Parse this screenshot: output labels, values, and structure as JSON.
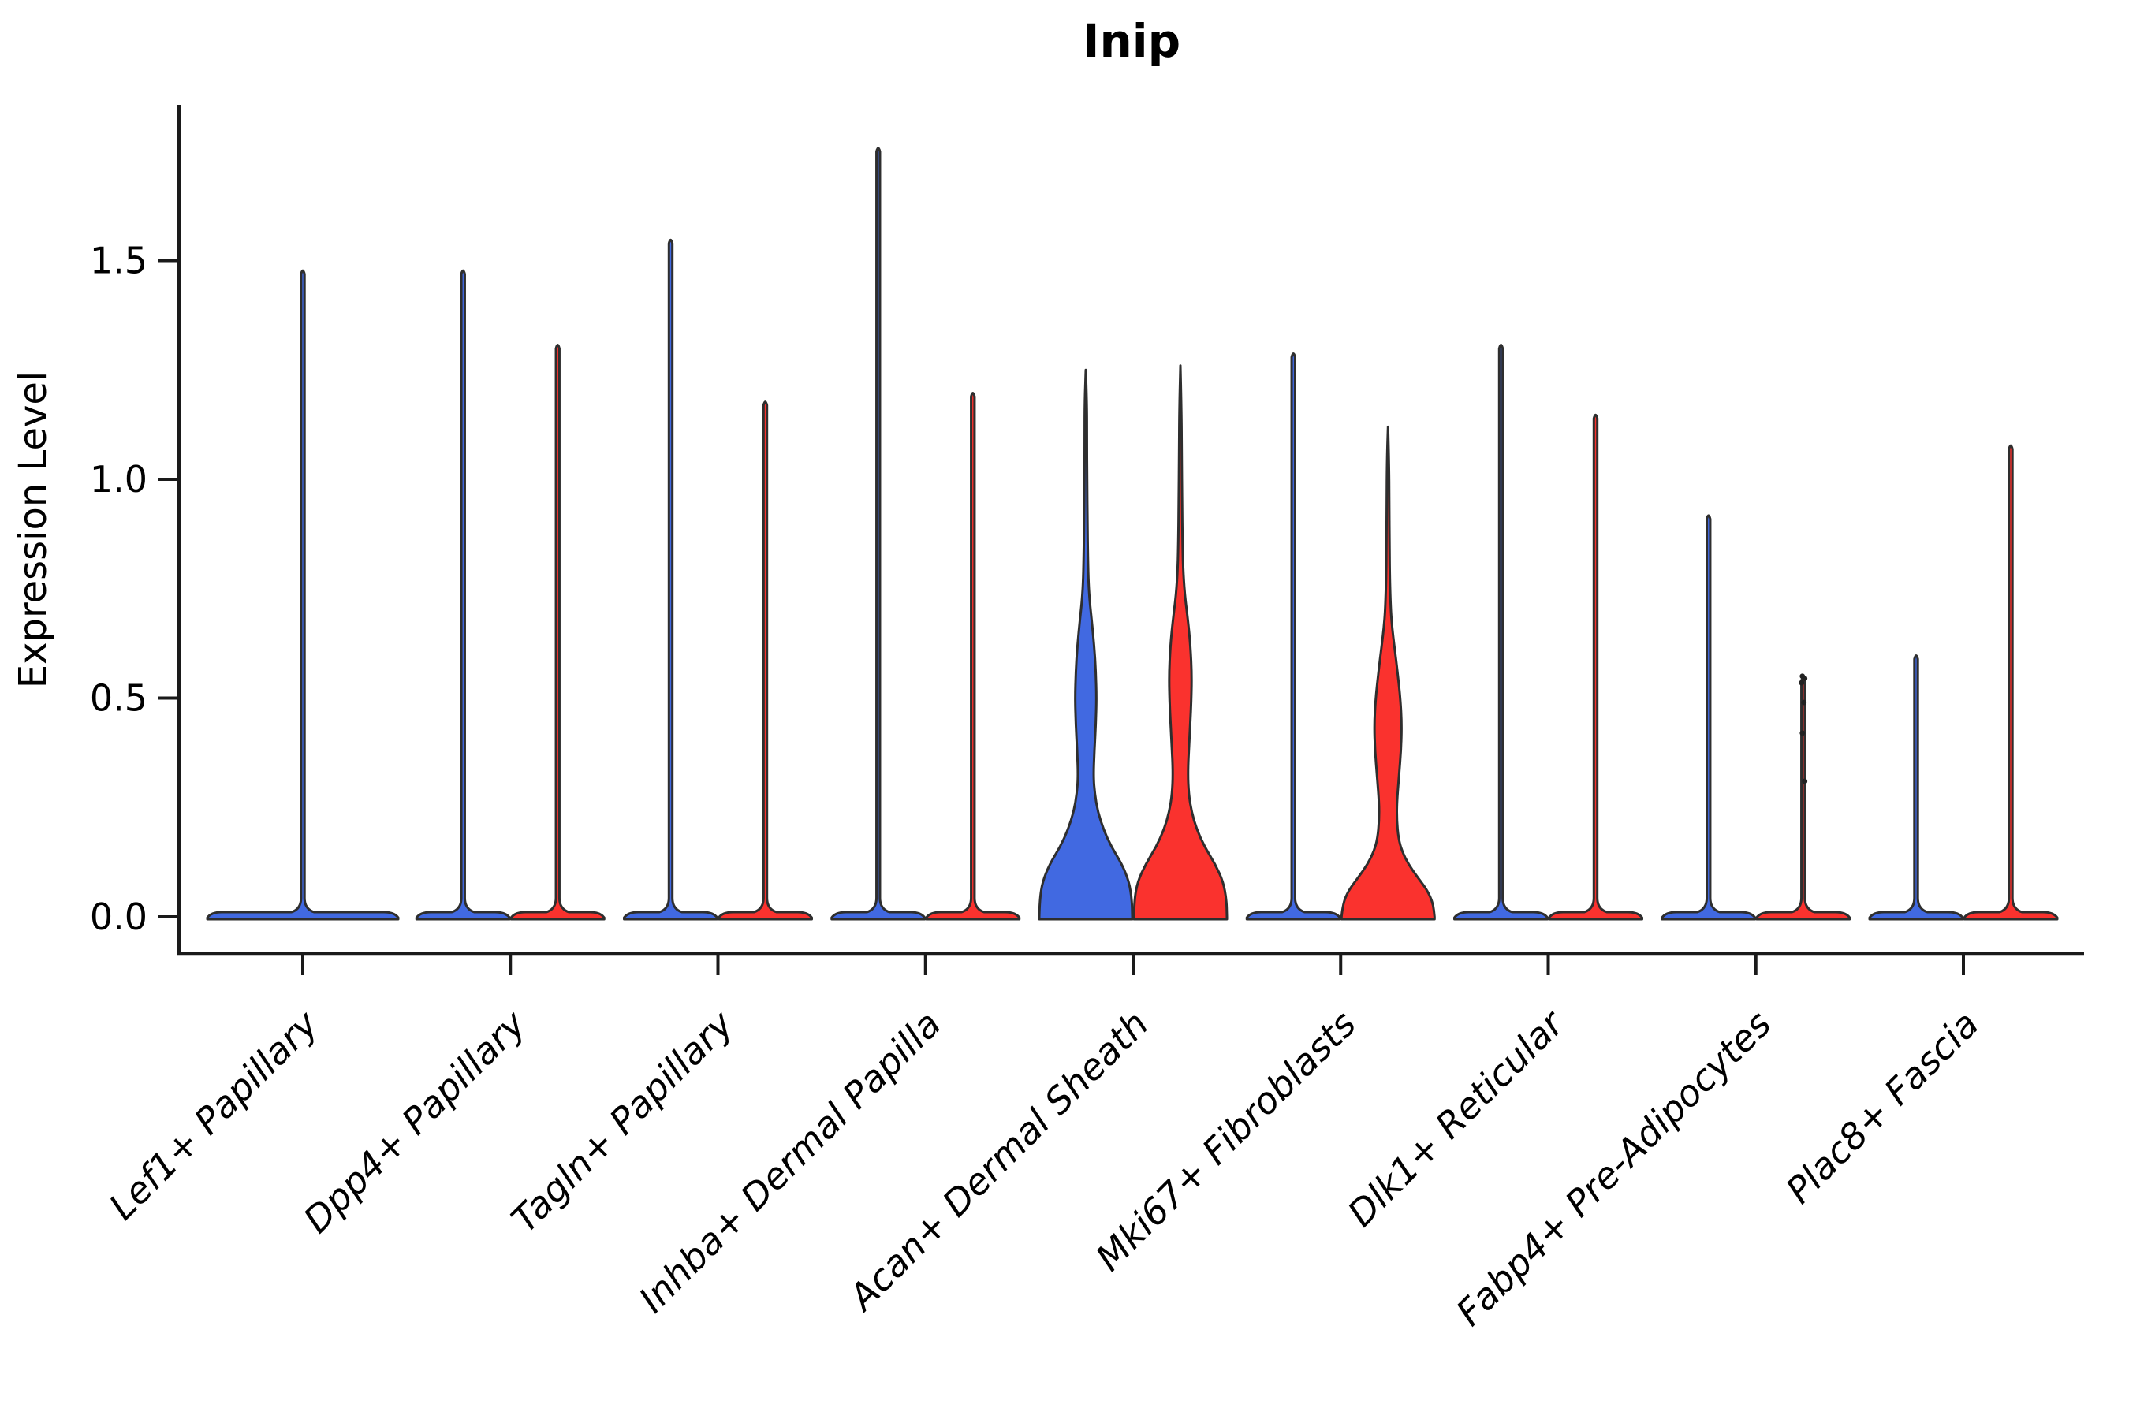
{
  "chart_data": {
    "type": "violin",
    "title": "Inip",
    "xlabel": "",
    "ylabel": "Expression Level",
    "ytick_labels": [
      "0.0",
      "0.5",
      "1.0",
      "1.5"
    ],
    "ytick_values": [
      0.0,
      0.5,
      1.0,
      1.5
    ],
    "ylim": [
      -0.085,
      1.856
    ],
    "grid": false,
    "legend_position": "none",
    "colors": {
      "split_blue": "#4169E1",
      "split_red": "#FA322E",
      "violin_edge": "#2E2E2E",
      "axis": "#1A1A1A",
      "point": "#222222"
    },
    "categories": [
      "Lef1+ Papillary",
      "Dpp4+ Papillary",
      "Tagln+ Papillary",
      "Inhba+ Dermal Papilla",
      "Acan+ Dermal Sheath",
      "Mki67+ Fibroblasts",
      "Dlk1+ Reticular",
      "Fabp4+ Pre-Adipocytes",
      "Plac8+ Fascia"
    ],
    "violins": [
      {
        "category": "Lef1+ Papillary",
        "group": "single",
        "style": "flat-spike",
        "max": 1.48,
        "color": "#4169E1"
      },
      {
        "category": "Dpp4+ Papillary",
        "group": "left",
        "style": "flat-spike",
        "max": 1.48,
        "color": "#4169E1"
      },
      {
        "category": "Dpp4+ Papillary",
        "group": "right",
        "style": "flat-spike",
        "max": 1.31,
        "color": "#FA322E"
      },
      {
        "category": "Tagln+ Papillary",
        "group": "left",
        "style": "flat-spike",
        "max": 1.55,
        "color": "#4169E1"
      },
      {
        "category": "Tagln+ Papillary",
        "group": "right",
        "style": "flat-spike",
        "max": 1.18,
        "color": "#FA322E"
      },
      {
        "category": "Inhba+ Dermal Papilla",
        "group": "left",
        "style": "flat-spike",
        "max": 1.76,
        "color": "#4169E1"
      },
      {
        "category": "Inhba+ Dermal Papilla",
        "group": "right",
        "style": "flat-spike",
        "max": 1.2,
        "color": "#FA322E"
      },
      {
        "category": "Acan+ Dermal Sheath",
        "group": "left",
        "style": "shaped",
        "max": 1.25,
        "color": "#4169E1",
        "profile": [
          [
            0,
            1.0
          ],
          [
            0.04,
            0.99
          ],
          [
            0.08,
            0.93
          ],
          [
            0.12,
            0.78
          ],
          [
            0.16,
            0.55
          ],
          [
            0.2,
            0.38
          ],
          [
            0.24,
            0.26
          ],
          [
            0.28,
            0.195
          ],
          [
            0.32,
            0.165
          ],
          [
            0.38,
            0.185
          ],
          [
            0.44,
            0.215
          ],
          [
            0.5,
            0.23
          ],
          [
            0.56,
            0.215
          ],
          [
            0.62,
            0.18
          ],
          [
            0.68,
            0.125
          ],
          [
            0.72,
            0.085
          ],
          [
            0.76,
            0.06
          ],
          [
            0.82,
            0.045
          ],
          [
            0.9,
            0.035
          ],
          [
            1.0,
            0.028
          ],
          [
            1.1,
            0.024
          ],
          [
            1.18,
            0.022
          ],
          [
            1.25,
            0
          ]
        ]
      },
      {
        "category": "Acan+ Dermal Sheath",
        "group": "right",
        "style": "shaped",
        "max": 1.26,
        "color": "#FA322E",
        "profile": [
          [
            0,
            1.0
          ],
          [
            0.04,
            0.99
          ],
          [
            0.08,
            0.92
          ],
          [
            0.12,
            0.75
          ],
          [
            0.16,
            0.52
          ],
          [
            0.2,
            0.35
          ],
          [
            0.24,
            0.24
          ],
          [
            0.28,
            0.18
          ],
          [
            0.33,
            0.16
          ],
          [
            0.4,
            0.19
          ],
          [
            0.48,
            0.23
          ],
          [
            0.55,
            0.245
          ],
          [
            0.62,
            0.215
          ],
          [
            0.68,
            0.16
          ],
          [
            0.73,
            0.1
          ],
          [
            0.78,
            0.065
          ],
          [
            0.85,
            0.045
          ],
          [
            0.95,
            0.035
          ],
          [
            1.05,
            0.028
          ],
          [
            1.15,
            0.024
          ],
          [
            1.26,
            0
          ]
        ]
      },
      {
        "category": "Mki67+ Fibroblasts",
        "group": "left",
        "style": "flat-spike",
        "max": 1.29,
        "color": "#4169E1"
      },
      {
        "category": "Mki67+ Fibroblasts",
        "group": "right",
        "style": "shaped",
        "max": 1.12,
        "color": "#FA322E",
        "profile": [
          [
            0,
            1.0
          ],
          [
            0.03,
            0.97
          ],
          [
            0.06,
            0.85
          ],
          [
            0.09,
            0.64
          ],
          [
            0.12,
            0.44
          ],
          [
            0.15,
            0.3
          ],
          [
            0.18,
            0.225
          ],
          [
            0.22,
            0.19
          ],
          [
            0.26,
            0.19
          ],
          [
            0.32,
            0.235
          ],
          [
            0.38,
            0.28
          ],
          [
            0.44,
            0.295
          ],
          [
            0.5,
            0.265
          ],
          [
            0.56,
            0.205
          ],
          [
            0.62,
            0.135
          ],
          [
            0.66,
            0.09
          ],
          [
            0.7,
            0.06
          ],
          [
            0.76,
            0.042
          ],
          [
            0.85,
            0.032
          ],
          [
            0.95,
            0.027
          ],
          [
            1.04,
            0.022
          ],
          [
            1.12,
            0
          ]
        ]
      },
      {
        "category": "Dlk1+ Reticular",
        "group": "left",
        "style": "flat-spike",
        "max": 1.31,
        "color": "#4169E1"
      },
      {
        "category": "Dlk1+ Reticular",
        "group": "right",
        "style": "flat-spike",
        "max": 1.15,
        "color": "#FA322E"
      },
      {
        "category": "Fabp4+ Pre-Adipocytes",
        "group": "left",
        "style": "flat-spike",
        "max": 0.92,
        "color": "#4169E1"
      },
      {
        "category": "Fabp4+ Pre-Adipocytes",
        "group": "right",
        "style": "flat-spike",
        "max": 0.55,
        "color": "#FA322E",
        "points": [
          0.55,
          0.545,
          0.535,
          0.49,
          0.42,
          0.31
        ]
      },
      {
        "category": "Plac8+ Fascia",
        "group": "left",
        "style": "flat-spike",
        "max": 0.6,
        "color": "#4169E1"
      },
      {
        "category": "Plac8+ Fascia",
        "group": "right",
        "style": "flat-spike",
        "max": 1.08,
        "color": "#FA322E"
      }
    ]
  }
}
